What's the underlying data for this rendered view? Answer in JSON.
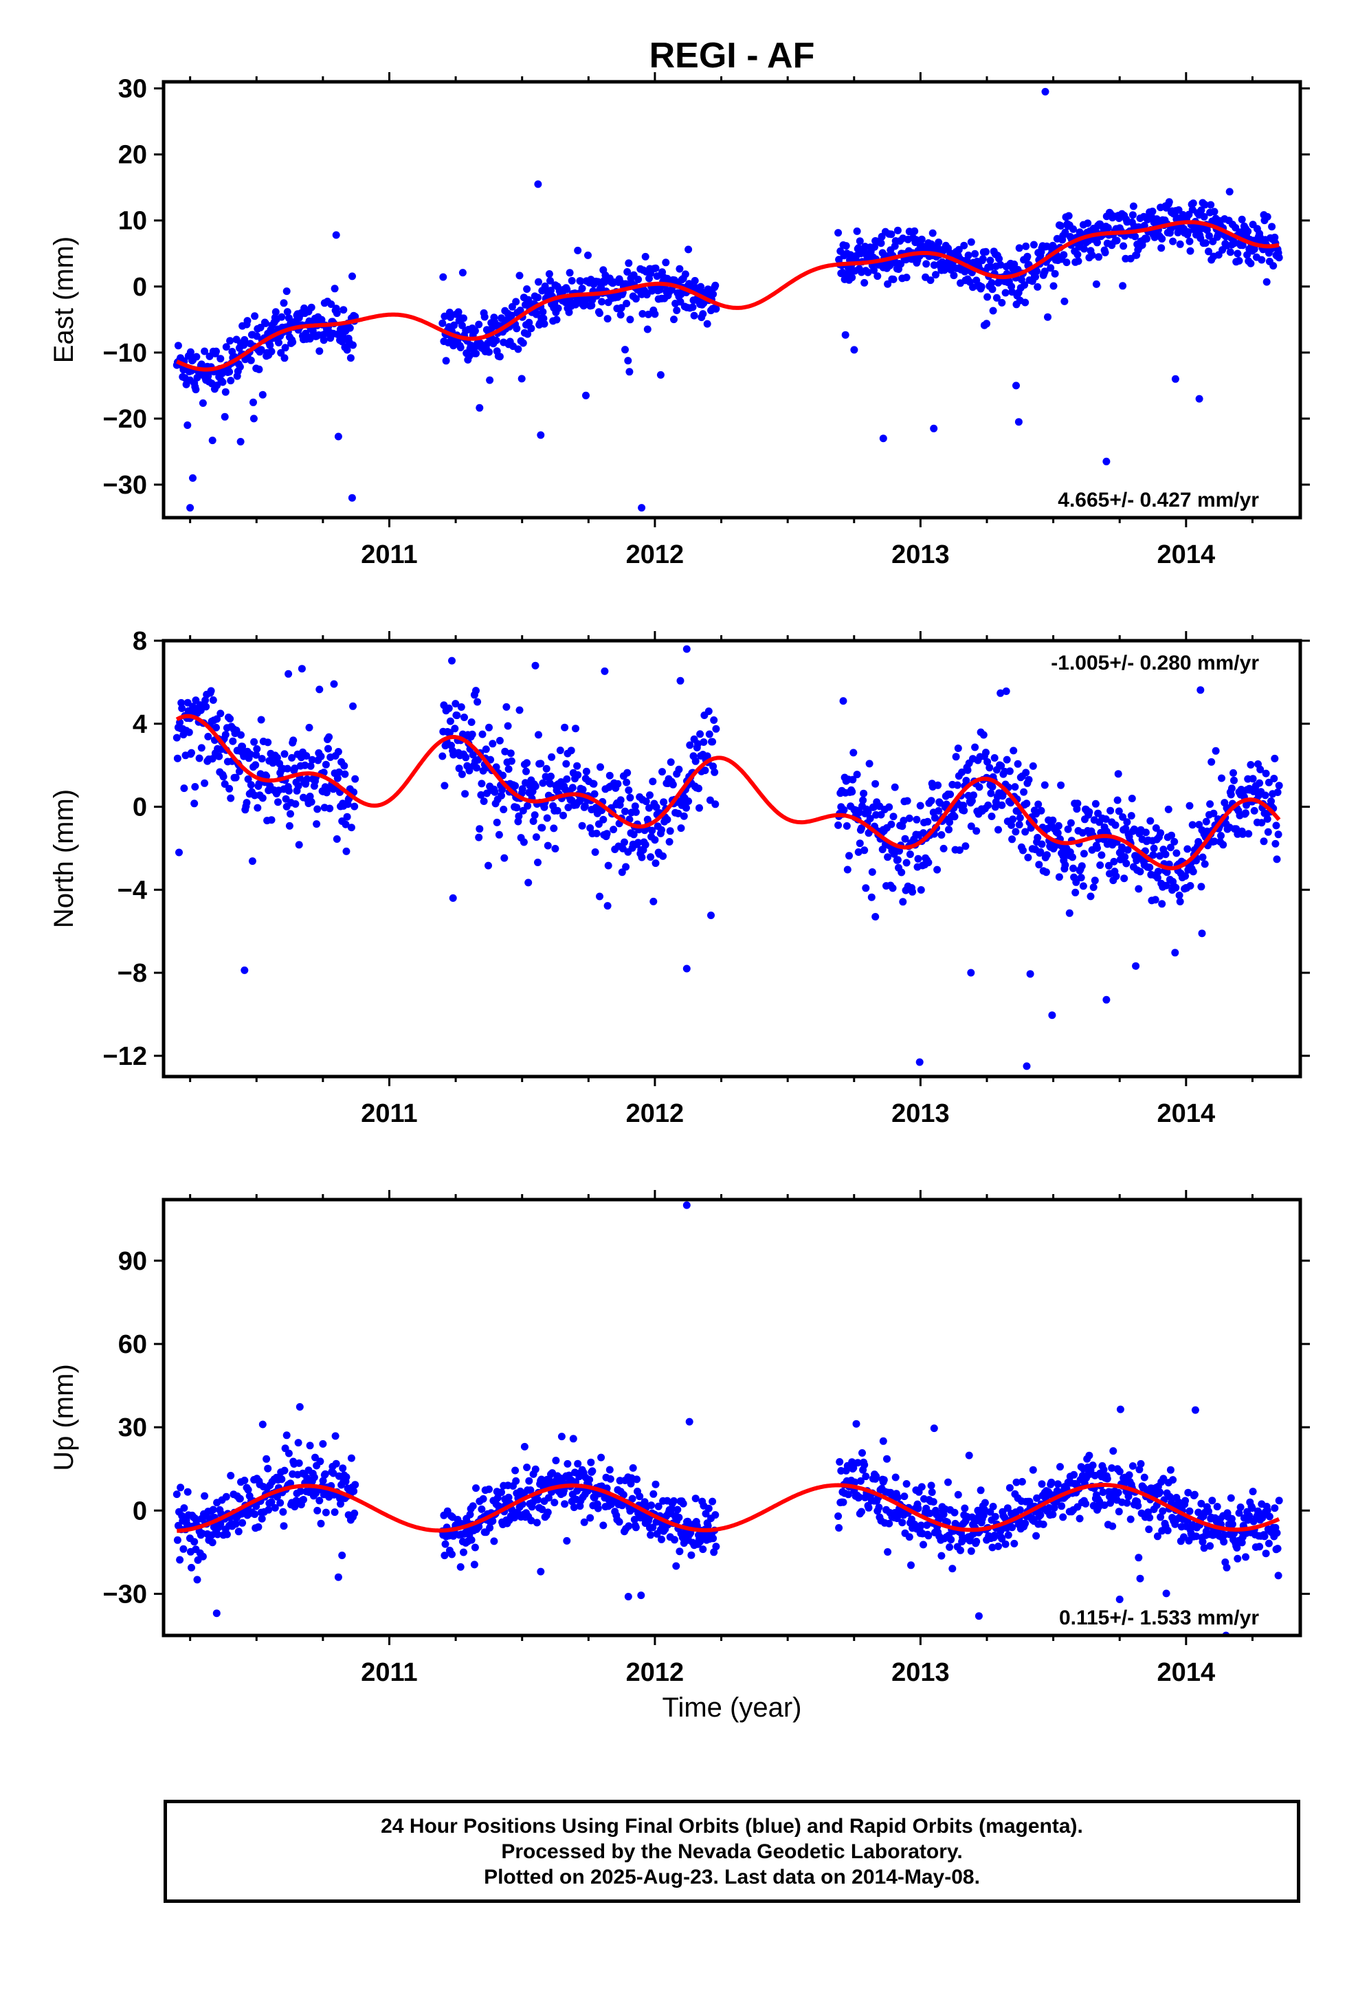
{
  "title": "REGI - AF",
  "xlabel": "Time (year)",
  "footer": {
    "line1": "24 Hour Positions Using Final Orbits (blue) and Rapid Orbits (magenta).",
    "line2": "Processed by the Nevada Geodetic Laboratory.",
    "line3": "Plotted on 2025-Aug-23. Last data on 2014-May-08."
  },
  "colors": {
    "points": "#0000ff",
    "fit": "#ff0000",
    "frame": "#000000"
  },
  "chart_data": [
    {
      "type": "scatter",
      "ylabel": "East (mm)",
      "rate_label": "4.665+/- 0.427 mm/yr",
      "rate_position": "bottom-right",
      "xlim": [
        2010.15,
        2014.43
      ],
      "ylim": [
        -35,
        31
      ],
      "yticks": [
        -30,
        -20,
        -10,
        0,
        10,
        20,
        30
      ],
      "xticks": [
        2011,
        2012,
        2013,
        2014
      ],
      "data_spans": [
        [
          2010.2,
          2010.87
        ],
        [
          2011.2,
          2012.23
        ],
        [
          2012.69,
          2014.35
        ]
      ],
      "fit": {
        "slope": 4.665,
        "t0": 2012.3,
        "offset": 0.0,
        "annual_sin": -2.0,
        "annual_cos": 1.2,
        "semiannual_sin": 0.8,
        "semiannual_cos": 0.6
      },
      "scatter": 1.8,
      "outliers": [
        [
          2010.25,
          -33.5
        ],
        [
          2010.26,
          -29
        ],
        [
          2010.24,
          -21
        ],
        [
          2010.44,
          -23.5
        ],
        [
          2010.86,
          -32
        ],
        [
          2010.8,
          7.8
        ],
        [
          2010.49,
          -20
        ],
        [
          2011.56,
          15.5
        ],
        [
          2011.57,
          -22.5
        ],
        [
          2011.95,
          -33.5
        ],
        [
          2011.74,
          -16.5
        ],
        [
          2013.47,
          29.5
        ],
        [
          2012.86,
          -23
        ],
        [
          2013.05,
          -21.5
        ],
        [
          2013.37,
          -20.5
        ],
        [
          2013.7,
          -26.5
        ],
        [
          2014.05,
          -17
        ],
        [
          2013.96,
          -14
        ],
        [
          2013.36,
          -15
        ]
      ]
    },
    {
      "type": "scatter",
      "ylabel": "North (mm)",
      "rate_label": "-1.005+/- 0.280 mm/yr",
      "rate_position": "top-right",
      "xlim": [
        2010.15,
        2014.43
      ],
      "ylim": [
        -13,
        8
      ],
      "yticks": [
        -12,
        -8,
        -4,
        0,
        4,
        8
      ],
      "xticks": [
        2011,
        2012,
        2013,
        2014
      ],
      "data_spans": [
        [
          2010.2,
          2010.87
        ],
        [
          2011.2,
          2012.23
        ],
        [
          2012.69,
          2014.35
        ]
      ],
      "fit": {
        "slope": -1.005,
        "t0": 2012.3,
        "offset": 0.2,
        "annual_sin": 1.2,
        "annual_cos": -0.3,
        "semiannual_sin": 0.2,
        "semiannual_cos": -0.9
      },
      "scatter": 1.1,
      "outliers": [
        [
          2012.12,
          7.6
        ],
        [
          2011.55,
          6.8
        ],
        [
          2010.62,
          6.4
        ],
        [
          2012.12,
          -7.8
        ],
        [
          2013.19,
          -8.0
        ],
        [
          2013.7,
          -9.3
        ],
        [
          2013.4,
          -12.5
        ],
        [
          2012.83,
          -5.3
        ],
        [
          2014.06,
          -6.1
        ],
        [
          2011.24,
          -4.4
        ]
      ]
    },
    {
      "type": "scatter",
      "ylabel": "Up (mm)",
      "rate_label": "0.115+/- 1.533 mm/yr",
      "rate_position": "bottom-right",
      "xlim": [
        2010.15,
        2014.43
      ],
      "ylim": [
        -45,
        112
      ],
      "yticks": [
        -30,
        0,
        30,
        60,
        90
      ],
      "xticks": [
        2011,
        2012,
        2013,
        2014
      ],
      "data_spans": [
        [
          2010.2,
          2010.87
        ],
        [
          2011.2,
          2012.23
        ],
        [
          2012.69,
          2014.35
        ]
      ],
      "fit": {
        "slope": 0.115,
        "t0": 2012.3,
        "offset": 1.0,
        "annual_sin": -7.5,
        "annual_cos": -3.0,
        "semiannual_sin": 0.0,
        "semiannual_cos": 0.0
      },
      "scatter": 5.0,
      "outliers": [
        [
          2012.12,
          110
        ],
        [
          2012.13,
          32
        ],
        [
          2010.35,
          -37
        ],
        [
          2010.75,
          24
        ],
        [
          2012.08,
          -20
        ],
        [
          2011.9,
          -31
        ],
        [
          2012.86,
          25
        ],
        [
          2013.22,
          -38
        ],
        [
          2013.75,
          -32
        ],
        [
          2011.57,
          -22
        ]
      ]
    }
  ]
}
